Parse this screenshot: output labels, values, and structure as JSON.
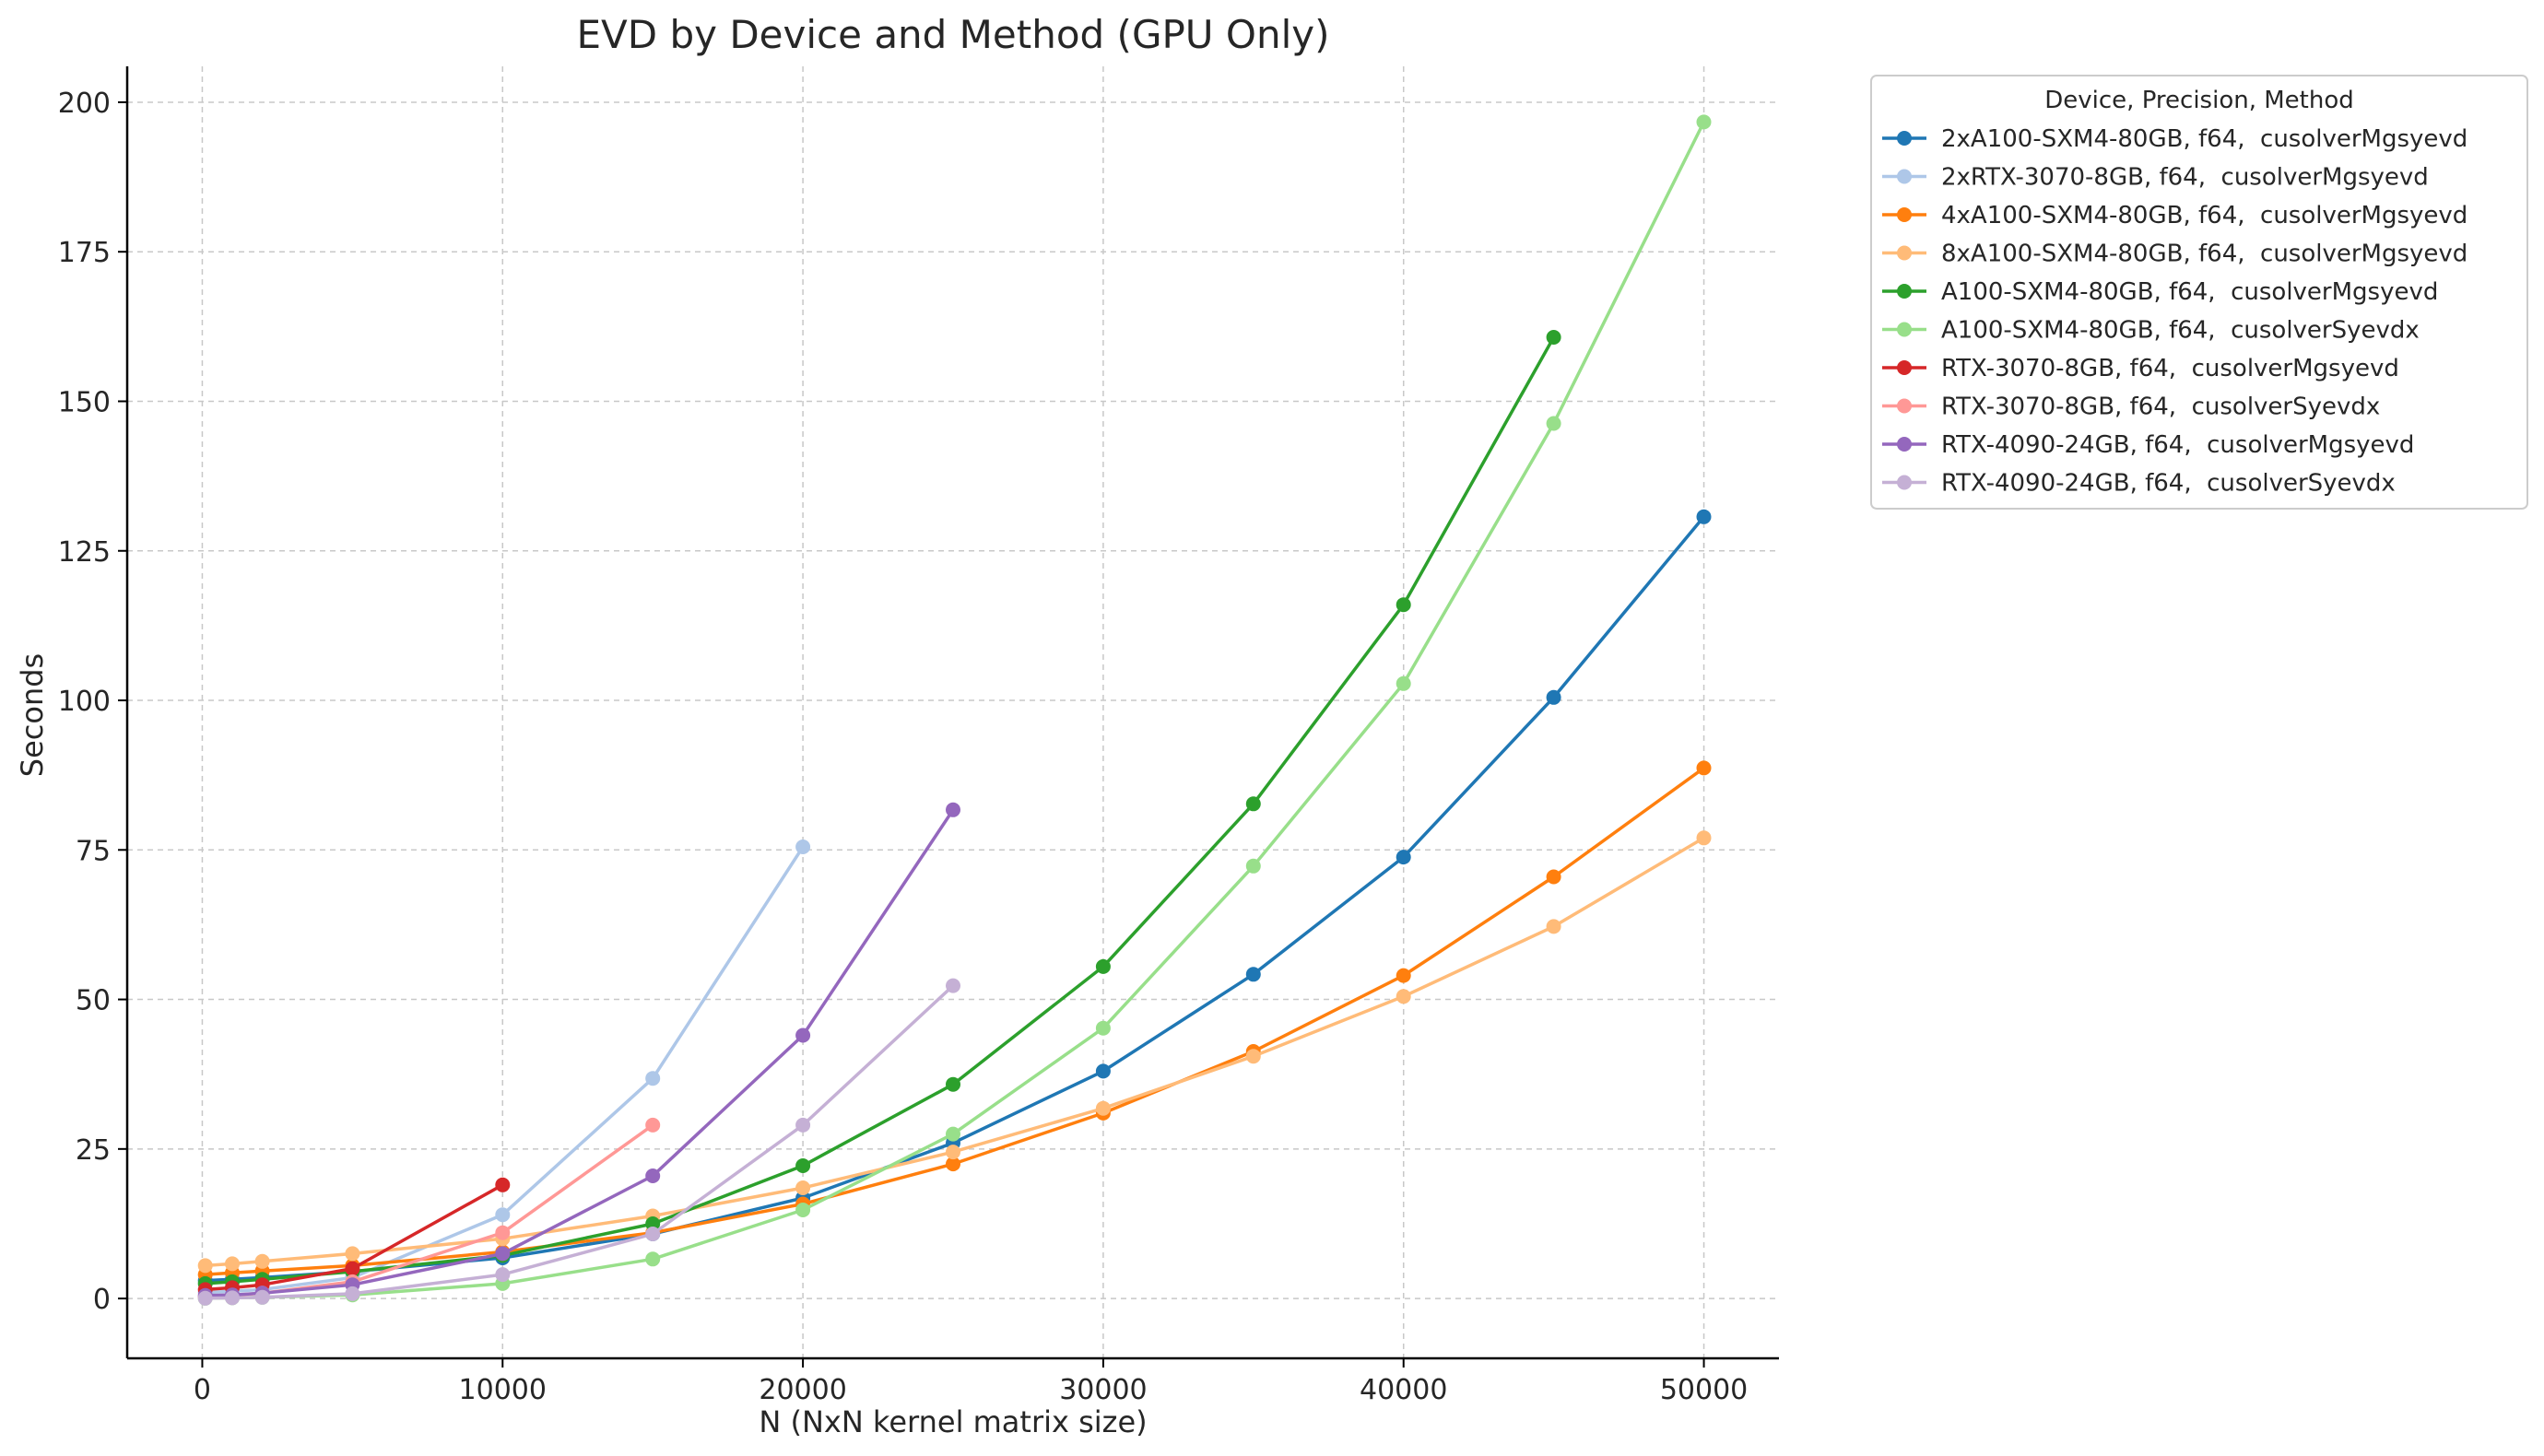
{
  "chart_data": {
    "type": "line",
    "title": "EVD by Device and Method (GPU Only)",
    "xlabel": "N (NxN kernel matrix size)",
    "ylabel": "Seconds",
    "xlim": [
      -2500,
      52500
    ],
    "ylim": [
      -10,
      206
    ],
    "xticks": [
      0,
      10000,
      20000,
      30000,
      40000,
      50000
    ],
    "xtick_labels": [
      "0",
      "10000",
      "20000",
      "30000",
      "40000",
      "50000"
    ],
    "yticks": [
      0,
      25,
      50,
      75,
      100,
      125,
      150,
      175,
      200
    ],
    "ytick_labels": [
      "0",
      "25",
      "50",
      "75",
      "100",
      "125",
      "150",
      "175",
      "200"
    ],
    "grid": true,
    "legend_title": "Device, Precision, Method",
    "legend_location": "outside-top-right",
    "series": [
      {
        "name": "2xA100-SXM4-80GB, f64,  cusolverMgsyevd",
        "color": "#1f77b4",
        "x": [
          100,
          1000,
          2000,
          5000,
          10000,
          15000,
          20000,
          25000,
          30000,
          35000,
          40000,
          45000,
          50000
        ],
        "y": [
          3.0,
          3.2,
          3.5,
          4.5,
          6.8,
          10.8,
          16.8,
          26.0,
          38.0,
          54.2,
          73.8,
          100.5,
          130.7
        ]
      },
      {
        "name": "2xRTX-3070-8GB, f64,  cusolverMgsyevd",
        "color": "#aec7e8",
        "x": [
          100,
          1000,
          2000,
          5000,
          10000,
          15000,
          20000
        ],
        "y": [
          1.0,
          1.2,
          1.5,
          3.5,
          14.0,
          36.8,
          75.5
        ]
      },
      {
        "name": "4xA100-SXM4-80GB, f64,  cusolverMgsyevd",
        "color": "#ff7f0e",
        "x": [
          100,
          1000,
          2000,
          5000,
          10000,
          15000,
          20000,
          25000,
          30000,
          35000,
          40000,
          45000,
          50000
        ],
        "y": [
          4.0,
          4.3,
          4.6,
          5.5,
          7.8,
          11.0,
          15.8,
          22.5,
          31.0,
          41.3,
          54.0,
          70.5,
          88.7
        ]
      },
      {
        "name": "8xA100-SXM4-80GB, f64,  cusolverMgsyevd",
        "color": "#ffbb78",
        "x": [
          100,
          1000,
          2000,
          5000,
          10000,
          15000,
          20000,
          25000,
          30000,
          35000,
          40000,
          45000,
          50000
        ],
        "y": [
          5.5,
          5.8,
          6.2,
          7.5,
          10.0,
          13.8,
          18.5,
          24.5,
          31.8,
          40.5,
          50.5,
          62.2,
          77.0
        ]
      },
      {
        "name": "A100-SXM4-80GB, f64,  cusolverMgsyevd",
        "color": "#2ca02c",
        "x": [
          100,
          1000,
          2000,
          5000,
          10000,
          15000,
          20000,
          25000,
          30000,
          35000,
          40000,
          45000
        ],
        "y": [
          2.5,
          2.8,
          3.2,
          4.5,
          7.2,
          12.5,
          22.2,
          35.8,
          55.5,
          82.7,
          116.0,
          160.7
        ]
      },
      {
        "name": "A100-SXM4-80GB, f64,  cusolverSyevdx",
        "color": "#98df8a",
        "x": [
          100,
          1000,
          2000,
          5000,
          10000,
          15000,
          20000,
          25000,
          30000,
          35000,
          40000,
          45000,
          50000
        ],
        "y": [
          0.05,
          0.1,
          0.2,
          0.6,
          2.5,
          6.6,
          14.8,
          27.5,
          45.2,
          72.3,
          102.8,
          146.3,
          196.7
        ]
      },
      {
        "name": "RTX-3070-8GB, f64,  cusolverMgsyevd",
        "color": "#d62728",
        "x": [
          100,
          1000,
          2000,
          5000,
          10000
        ],
        "y": [
          1.5,
          1.8,
          2.3,
          5.0,
          19.0
        ]
      },
      {
        "name": "RTX-3070-8GB, f64,  cusolverSyevdx",
        "color": "#ff9896",
        "x": [
          100,
          1000,
          2000,
          5000,
          10000,
          15000
        ],
        "y": [
          0.3,
          0.5,
          0.9,
          2.8,
          11.0,
          29.0
        ]
      },
      {
        "name": "RTX-4090-24GB, f64,  cusolverMgsyevd",
        "color": "#9467bd",
        "x": [
          100,
          1000,
          2000,
          5000,
          10000,
          15000,
          20000,
          25000
        ],
        "y": [
          0.5,
          0.6,
          0.9,
          2.3,
          7.5,
          20.5,
          44.0,
          81.7
        ]
      },
      {
        "name": "RTX-4090-24GB, f64,  cusolverSyevdx",
        "color": "#c5b0d5",
        "x": [
          100,
          1000,
          2000,
          5000,
          10000,
          15000,
          20000,
          25000
        ],
        "y": [
          0.05,
          0.1,
          0.2,
          0.8,
          4.0,
          10.8,
          29.0,
          52.3
        ]
      }
    ]
  }
}
